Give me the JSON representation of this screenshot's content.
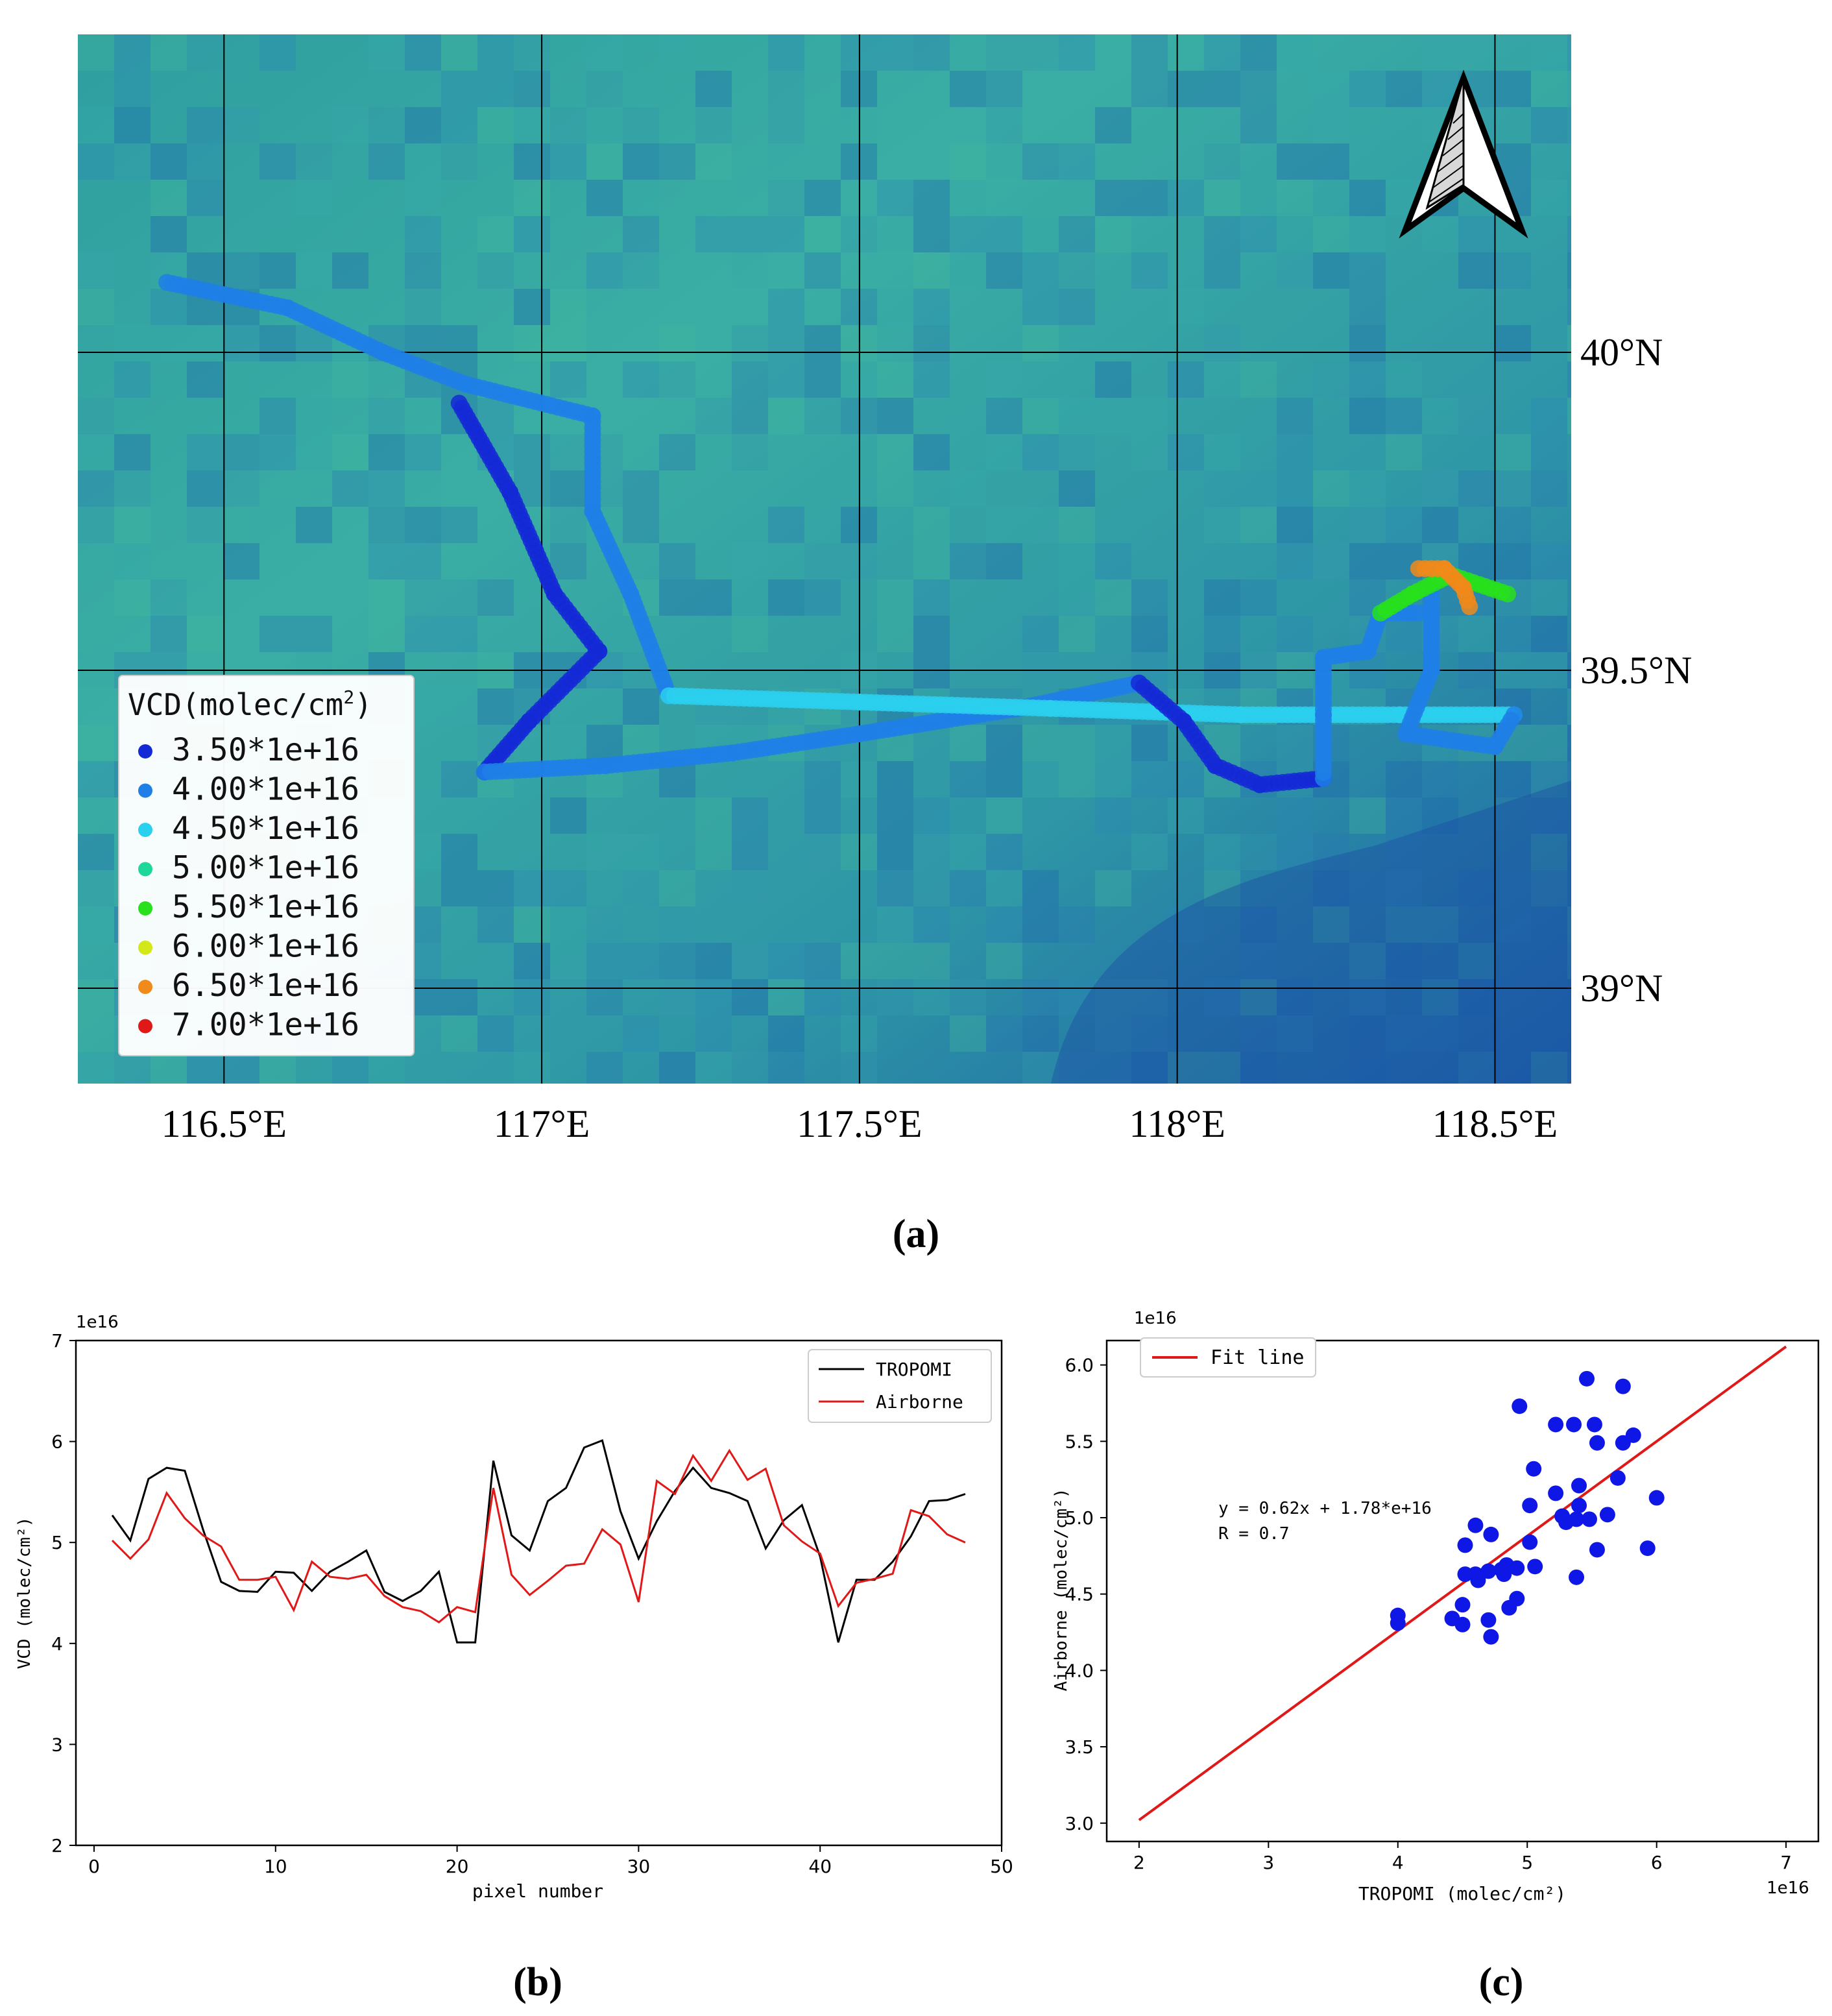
{
  "panels": {
    "a": {
      "label": "(a)"
    },
    "b": {
      "label": "(b)"
    },
    "c": {
      "label": "(c)"
    }
  },
  "colors": {
    "c3_5": "#1429d6",
    "c4_0": "#1f7fe6",
    "c4_5": "#2bd0ef",
    "c5_0": "#1ed89a",
    "c5_5": "#28e01c",
    "c6_0": "#d2e81a",
    "c6_5": "#f08a1a",
    "c7_0": "#e01818",
    "tropomi_line": "#000000",
    "airborne_line": "#e01818",
    "fit_line": "#e01818",
    "scatter_points": "#0f17e6"
  },
  "chart_data": [
    {
      "type": "scatter",
      "panel": "a",
      "title": "",
      "xlim": [
        116.27,
        118.62
      ],
      "ylim": [
        38.85,
        40.5
      ],
      "x_ticks": [
        116.5,
        117,
        117.5,
        118,
        118.5
      ],
      "x_tick_labels": [
        "116.5°E",
        "117°E",
        "117.5°E",
        "118°E",
        "118.5°E"
      ],
      "y_ticks": [
        40,
        39.5,
        39
      ],
      "y_tick_labels": [
        "40°N",
        "39.5°N",
        "39°N"
      ],
      "grid": true,
      "north_arrow": "top-right",
      "legend": {
        "title": "VCD(molec/cm",
        "title_sup": "2",
        "title_end": ")",
        "placement": "bottom-left",
        "entries": [
          {
            "label": "3.50*1e+16",
            "value": 3.5e+16,
            "color": "#1429d6"
          },
          {
            "label": "4.00*1e+16",
            "value": 4e+16,
            "color": "#1f7fe6"
          },
          {
            "label": "4.50*1e+16",
            "value": 4.5e+16,
            "color": "#2bd0ef"
          },
          {
            "label": "5.00*1e+16",
            "value": 5e+16,
            "color": "#1ed89a"
          },
          {
            "label": "5.50*1e+16",
            "value": 5.5e+16,
            "color": "#28e01c"
          },
          {
            "label": "6.00*1e+16",
            "value": 6e+16,
            "color": "#d2e81a"
          },
          {
            "label": "6.50*1e+16",
            "value": 6.5e+16,
            "color": "#f08a1a"
          },
          {
            "label": "7.00*1e+16",
            "value": 7e+16,
            "color": "#e01818"
          }
        ]
      },
      "flight_segments": [
        {
          "vcd": 4.0,
          "points": [
            [
              116.41,
              40.11
            ],
            [
              116.6,
              40.07
            ],
            [
              116.75,
              40.0
            ],
            [
              116.88,
              39.95
            ],
            [
              117.08,
              39.9
            ]
          ]
        },
        {
          "vcd": 4.0,
          "points": [
            [
              117.08,
              39.9
            ],
            [
              117.08,
              39.75
            ],
            [
              117.14,
              39.62
            ],
            [
              117.2,
              39.46
            ]
          ]
        },
        {
          "vcd": 3.6,
          "points": [
            [
              116.87,
              39.92
            ],
            [
              116.95,
              39.78
            ],
            [
              117.02,
              39.62
            ],
            [
              117.09,
              39.53
            ],
            [
              116.98,
              39.42
            ],
            [
              116.91,
              39.34
            ]
          ]
        },
        {
          "vcd": 4.2,
          "points": [
            [
              116.91,
              39.34
            ],
            [
              117.1,
              39.35
            ],
            [
              117.3,
              39.37
            ],
            [
              117.5,
              39.4
            ],
            [
              117.75,
              39.44
            ],
            [
              117.94,
              39.48
            ]
          ]
        },
        {
          "vcd": 4.6,
          "points": [
            [
              117.2,
              39.46
            ],
            [
              117.5,
              39.45
            ],
            [
              117.8,
              39.44
            ],
            [
              118.1,
              39.43
            ],
            [
              118.35,
              39.43
            ],
            [
              118.53,
              39.43
            ]
          ]
        },
        {
          "vcd": 3.6,
          "points": [
            [
              117.94,
              39.48
            ],
            [
              118.01,
              39.42
            ],
            [
              118.06,
              39.35
            ],
            [
              118.13,
              39.32
            ],
            [
              118.23,
              39.33
            ]
          ]
        },
        {
          "vcd": 3.8,
          "points": [
            [
              118.23,
              39.33
            ],
            [
              118.23,
              39.43
            ],
            [
              118.23,
              39.52
            ],
            [
              118.3,
              39.53
            ],
            [
              118.32,
              39.59
            ],
            [
              118.38,
              39.59
            ]
          ]
        },
        {
          "vcd": 4.0,
          "points": [
            [
              118.4,
              39.62
            ],
            [
              118.4,
              39.5
            ],
            [
              118.36,
              39.4
            ],
            [
              118.5,
              39.38
            ],
            [
              118.53,
              39.43
            ]
          ]
        },
        {
          "vcd": 5.4,
          "points": [
            [
              118.32,
              39.59
            ],
            [
              118.37,
              39.62
            ],
            [
              118.43,
              39.65
            ],
            [
              118.52,
              39.62
            ]
          ]
        },
        {
          "vcd": 6.5,
          "points": [
            [
              118.38,
              39.66
            ],
            [
              118.42,
              39.66
            ],
            [
              118.45,
              39.63
            ],
            [
              118.46,
              39.6
            ]
          ]
        }
      ]
    },
    {
      "type": "line",
      "panel": "b",
      "title": "",
      "xlabel": "pixel number",
      "ylabel": "VCD (molec/cm²)",
      "offset_text": "1e16",
      "xlim": [
        -1,
        50
      ],
      "ylim": [
        2,
        7
      ],
      "x_ticks": [
        0,
        10,
        20,
        30,
        40,
        50
      ],
      "y_ticks": [
        2,
        3,
        4,
        5,
        6,
        7
      ],
      "legend": "top-right",
      "x": [
        1,
        2,
        3,
        4,
        5,
        6,
        7,
        8,
        9,
        10,
        11,
        12,
        13,
        14,
        15,
        16,
        17,
        18,
        19,
        20,
        21,
        22,
        23,
        24,
        25,
        26,
        27,
        28,
        29,
        30,
        31,
        32,
        33,
        34,
        35,
        36,
        37,
        38,
        39,
        40,
        41,
        42,
        43,
        44,
        45,
        46,
        47,
        48
      ],
      "series": [
        {
          "name": "TROPOMI",
          "color": "#000000",
          "values": [
            5.27,
            5.02,
            5.63,
            5.74,
            5.71,
            5.13,
            4.61,
            4.52,
            4.51,
            4.71,
            4.7,
            4.52,
            4.71,
            4.81,
            4.92,
            4.51,
            4.42,
            4.52,
            4.71,
            4.01,
            4.01,
            5.81,
            5.07,
            4.92,
            5.41,
            5.54,
            5.94,
            6.01,
            5.31,
            4.84,
            5.21,
            5.51,
            5.74,
            5.54,
            5.49,
            5.41,
            4.94,
            5.22,
            5.37,
            4.86,
            4.01,
            4.63,
            4.63,
            4.81,
            5.06,
            5.41,
            5.42,
            5.48
          ]
        },
        {
          "name": "Airborne",
          "color": "#e01818",
          "values": [
            5.02,
            4.84,
            5.03,
            5.49,
            5.24,
            5.07,
            4.96,
            4.63,
            4.63,
            4.66,
            4.33,
            4.81,
            4.66,
            4.64,
            4.68,
            4.47,
            4.36,
            4.32,
            4.21,
            4.36,
            4.31,
            5.54,
            4.68,
            4.48,
            4.62,
            4.77,
            4.79,
            5.13,
            4.98,
            4.41,
            5.61,
            5.48,
            5.86,
            5.61,
            5.91,
            5.62,
            5.73,
            5.17,
            5.01,
            4.89,
            4.37,
            4.6,
            4.64,
            4.69,
            5.32,
            5.26,
            5.08,
            5.0
          ]
        }
      ]
    },
    {
      "type": "scatter",
      "panel": "c",
      "title": "",
      "xlabel": "TROPOMI (molec/cm²)",
      "ylabel": "Airborne (molec/cm²)",
      "x_offset_text": "1e16",
      "y_offset_text": "1e16",
      "xlim": [
        1.75,
        7.25
      ],
      "ylim": [
        2.88,
        6.16
      ],
      "x_ticks": [
        2,
        3,
        4,
        5,
        6,
        7
      ],
      "y_ticks": [
        3.0,
        3.5,
        4.0,
        4.5,
        5.0,
        5.5,
        6.0
      ],
      "y_tick_labels": [
        "3.0",
        "3.5",
        "4.0",
        "4.5",
        "5.0",
        "5.5",
        "6.0"
      ],
      "legend": "top-left",
      "annotation": {
        "line1": "y = 0.62x + 1.78*e+16",
        "line2": "R = 0.7"
      },
      "fit_line": {
        "name": "Fit line",
        "slope": 0.62,
        "intercept": 1.78,
        "x_range": [
          2,
          7
        ]
      },
      "points": [
        [
          4.0,
          4.36
        ],
        [
          4.0,
          4.31
        ],
        [
          4.42,
          4.34
        ],
        [
          4.5,
          4.3
        ],
        [
          4.5,
          4.43
        ],
        [
          4.52,
          4.82
        ],
        [
          4.52,
          4.63
        ],
        [
          4.6,
          4.63
        ],
        [
          4.6,
          4.95
        ],
        [
          4.62,
          4.59
        ],
        [
          4.7,
          4.65
        ],
        [
          4.7,
          4.33
        ],
        [
          4.72,
          4.22
        ],
        [
          4.72,
          4.89
        ],
        [
          4.8,
          4.66
        ],
        [
          4.82,
          4.63
        ],
        [
          4.84,
          4.69
        ],
        [
          4.86,
          4.41
        ],
        [
          4.92,
          4.67
        ],
        [
          4.92,
          4.47
        ],
        [
          4.94,
          5.73
        ],
        [
          5.02,
          4.84
        ],
        [
          5.02,
          5.08
        ],
        [
          5.05,
          5.32
        ],
        [
          5.06,
          4.68
        ],
        [
          5.22,
          5.61
        ],
        [
          5.22,
          5.16
        ],
        [
          5.27,
          5.01
        ],
        [
          5.3,
          4.97
        ],
        [
          5.36,
          5.61
        ],
        [
          5.38,
          4.99
        ],
        [
          5.38,
          4.61
        ],
        [
          5.4,
          5.08
        ],
        [
          5.4,
          5.21
        ],
        [
          5.46,
          5.91
        ],
        [
          5.48,
          4.99
        ],
        [
          5.52,
          5.61
        ],
        [
          5.54,
          5.49
        ],
        [
          5.54,
          4.79
        ],
        [
          5.62,
          5.02
        ],
        [
          5.7,
          5.26
        ],
        [
          5.74,
          5.49
        ],
        [
          5.74,
          5.86
        ],
        [
          5.82,
          5.54
        ],
        [
          5.93,
          4.8
        ],
        [
          6.0,
          5.13
        ]
      ]
    }
  ]
}
